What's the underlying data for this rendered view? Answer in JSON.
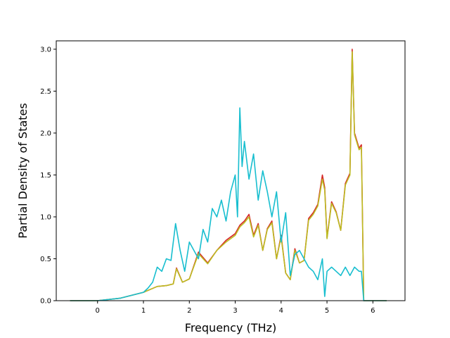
{
  "chart_data": {
    "type": "line",
    "xlabel": "Frequency (THz)",
    "ylabel": "Partial Density of States",
    "xlim": [
      -0.9,
      6.7
    ],
    "ylim": [
      0.0,
      3.1
    ],
    "x_ticks": [
      "0",
      "1",
      "2",
      "3",
      "4",
      "5",
      "6"
    ],
    "x_tick_values": [
      0,
      1,
      2,
      3,
      4,
      5,
      6
    ],
    "y_ticks": [
      "0.0",
      "0.5",
      "1.0",
      "1.5",
      "2.0",
      "2.5",
      "3.0"
    ],
    "y_tick_values": [
      0.0,
      0.5,
      1.0,
      1.5,
      2.0,
      2.5,
      3.0
    ],
    "grid": false,
    "legend": "none",
    "series": [
      {
        "color": "#d62728",
        "x": [
          -0.6,
          0.0,
          0.5,
          1.0,
          1.3,
          1.5,
          1.65,
          1.72,
          1.85,
          2.0,
          2.2,
          2.4,
          2.6,
          2.8,
          3.0,
          3.1,
          3.2,
          3.3,
          3.4,
          3.5,
          3.6,
          3.7,
          3.8,
          3.9,
          4.0,
          4.1,
          4.2,
          4.3,
          4.4,
          4.5,
          4.6,
          4.7,
          4.8,
          4.9,
          4.95,
          5.0,
          5.1,
          5.2,
          5.3,
          5.4,
          5.5,
          5.55,
          5.6,
          5.7,
          5.75,
          5.8,
          6.3
        ],
        "y": [
          0.0,
          0.0,
          0.03,
          0.1,
          0.17,
          0.18,
          0.2,
          0.39,
          0.22,
          0.26,
          0.58,
          0.45,
          0.6,
          0.72,
          0.8,
          0.9,
          0.95,
          1.03,
          0.78,
          0.92,
          0.6,
          0.86,
          0.95,
          0.5,
          0.78,
          0.33,
          0.25,
          0.62,
          0.45,
          0.48,
          0.98,
          1.05,
          1.15,
          1.5,
          1.35,
          0.75,
          1.18,
          1.06,
          0.84,
          1.4,
          1.52,
          3.0,
          2.0,
          1.82,
          1.86,
          0.0,
          0.0
        ]
      },
      {
        "color": "#bcbd22",
        "x": [
          -0.6,
          0.0,
          0.5,
          1.0,
          1.3,
          1.5,
          1.65,
          1.72,
          1.85,
          2.0,
          2.2,
          2.4,
          2.6,
          2.8,
          3.0,
          3.1,
          3.2,
          3.3,
          3.4,
          3.5,
          3.6,
          3.7,
          3.8,
          3.9,
          4.0,
          4.1,
          4.2,
          4.3,
          4.4,
          4.5,
          4.6,
          4.7,
          4.8,
          4.9,
          4.95,
          5.0,
          5.1,
          5.2,
          5.3,
          5.4,
          5.5,
          5.55,
          5.6,
          5.7,
          5.75,
          5.8,
          6.3
        ],
        "y": [
          0.0,
          0.0,
          0.03,
          0.1,
          0.17,
          0.18,
          0.2,
          0.38,
          0.22,
          0.26,
          0.56,
          0.44,
          0.6,
          0.7,
          0.78,
          0.88,
          0.93,
          1.0,
          0.76,
          0.9,
          0.6,
          0.85,
          0.93,
          0.5,
          0.76,
          0.33,
          0.25,
          0.6,
          0.45,
          0.48,
          0.96,
          1.03,
          1.13,
          1.45,
          1.32,
          0.74,
          1.16,
          1.05,
          0.84,
          1.38,
          1.5,
          2.97,
          1.98,
          1.8,
          1.83,
          0.0,
          0.0
        ]
      },
      {
        "color": "#17becf",
        "x": [
          -0.6,
          0.0,
          0.5,
          1.0,
          1.1,
          1.2,
          1.3,
          1.4,
          1.5,
          1.6,
          1.7,
          1.8,
          1.9,
          2.0,
          2.1,
          2.2,
          2.3,
          2.4,
          2.5,
          2.6,
          2.7,
          2.8,
          2.9,
          3.0,
          3.05,
          3.1,
          3.15,
          3.2,
          3.3,
          3.4,
          3.5,
          3.6,
          3.7,
          3.8,
          3.9,
          4.0,
          4.1,
          4.2,
          4.3,
          4.4,
          4.5,
          4.6,
          4.7,
          4.8,
          4.9,
          4.95,
          5.0,
          5.1,
          5.2,
          5.3,
          5.4,
          5.5,
          5.6,
          5.7,
          5.75,
          5.8,
          6.3
        ],
        "y": [
          0.0,
          0.0,
          0.03,
          0.1,
          0.15,
          0.22,
          0.4,
          0.35,
          0.5,
          0.48,
          0.92,
          0.6,
          0.35,
          0.7,
          0.6,
          0.5,
          0.85,
          0.7,
          1.1,
          1.0,
          1.2,
          0.95,
          1.3,
          1.5,
          1.0,
          2.3,
          1.6,
          1.9,
          1.45,
          1.75,
          1.2,
          1.55,
          1.3,
          1.0,
          1.3,
          0.7,
          1.05,
          0.3,
          0.55,
          0.6,
          0.5,
          0.4,
          0.35,
          0.25,
          0.5,
          0.05,
          0.35,
          0.4,
          0.35,
          0.3,
          0.4,
          0.3,
          0.4,
          0.35,
          0.35,
          0.0,
          0.0
        ]
      }
    ]
  }
}
